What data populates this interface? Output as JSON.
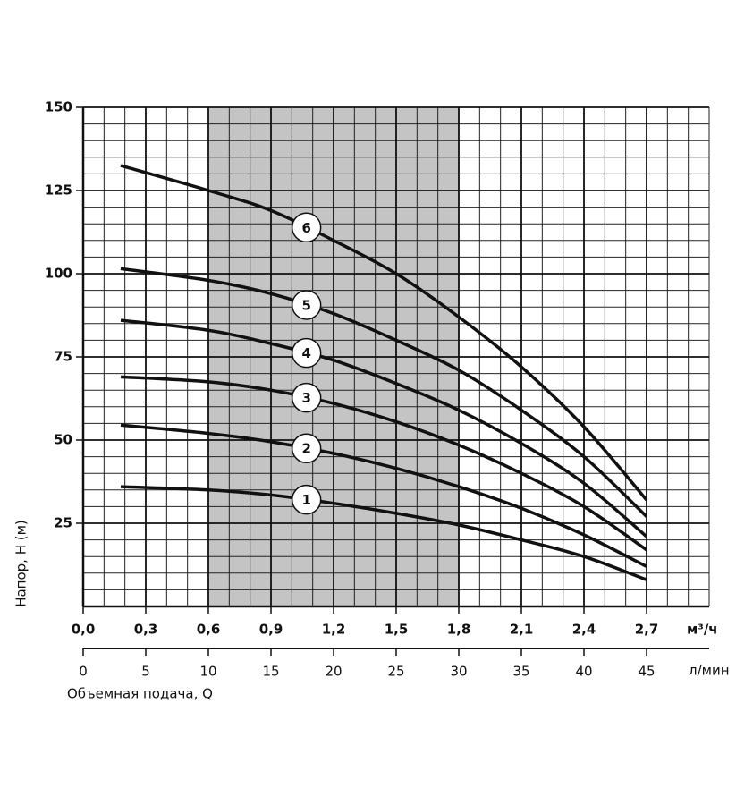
{
  "chart_data": {
    "type": "line",
    "x_label": "Объемная подача, Q",
    "y_label": "Напор, H (м)",
    "x_unit": "м³/ч",
    "x2_unit": "л/мин",
    "x": [
      0.18,
      0.6,
      0.9,
      1.2,
      1.5,
      1.8,
      2.1,
      2.4,
      2.7
    ],
    "series": [
      {
        "name": "1",
        "color": "#111111",
        "values": [
          36,
          35,
          33.5,
          31,
          28,
          24.5,
          20,
          15,
          8
        ]
      },
      {
        "name": "2",
        "color": "#111111",
        "values": [
          54.5,
          52,
          49.5,
          46,
          41.5,
          36,
          29.5,
          21.5,
          12
        ]
      },
      {
        "name": "3",
        "color": "#111111",
        "values": [
          69,
          67.5,
          65,
          61,
          55.5,
          48.5,
          40,
          30,
          17
        ]
      },
      {
        "name": "4",
        "color": "#111111",
        "values": [
          86,
          83,
          79,
          74,
          67,
          59,
          49,
          37,
          21
        ]
      },
      {
        "name": "5",
        "color": "#111111",
        "values": [
          101.5,
          98,
          94,
          88,
          80,
          71,
          59,
          45,
          27
        ]
      },
      {
        "name": "6",
        "color": "#111111",
        "values": [
          132.5,
          125,
          119,
          110,
          100,
          87,
          72,
          54,
          32
        ]
      }
    ],
    "xlim": [
      0,
      3.0
    ],
    "xticks": [
      {
        "value": 0,
        "label": "0,0"
      },
      {
        "value": 0.3,
        "label": "0,3"
      },
      {
        "value": 0.6,
        "label": "0,6"
      },
      {
        "value": 0.9,
        "label": "0,9"
      },
      {
        "value": 1.2,
        "label": "1,2"
      },
      {
        "value": 1.5,
        "label": "1,5"
      },
      {
        "value": 1.8,
        "label": "1,8"
      },
      {
        "value": 2.1,
        "label": "2,1"
      },
      {
        "value": 2.4,
        "label": "2,4"
      },
      {
        "value": 2.7,
        "label": "2,7"
      }
    ],
    "x2lim": [
      0,
      50
    ],
    "x2ticks": [
      0,
      5,
      10,
      15,
      20,
      25,
      30,
      35,
      40,
      45
    ],
    "ylim": [
      0,
      150
    ],
    "yticks": [
      25,
      50,
      75,
      100,
      125,
      150
    ],
    "x_minor_step": 0.1,
    "y_minor_step": 5,
    "grid": true,
    "shaded_range": [
      0.6,
      1.8
    ],
    "shade_color": "#c4c4c4"
  }
}
